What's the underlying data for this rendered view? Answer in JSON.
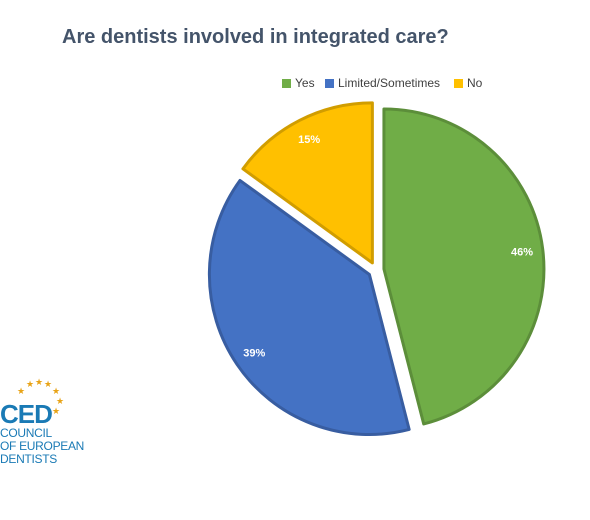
{
  "chart_data": {
    "type": "pie",
    "title": "Are dentists involved in integrated care?",
    "categories": [
      "Yes",
      "Limited/Sometimes",
      "No"
    ],
    "values": [
      46,
      39,
      15
    ],
    "labels": [
      "46%",
      "39%",
      "15%"
    ],
    "colors": [
      "#70ad47",
      "#4472c4",
      "#ffc000"
    ],
    "exploded": true,
    "legend": "top"
  },
  "logo": {
    "abbr": "CED",
    "line1": "COUNCIL",
    "line2": "OF EUROPEAN",
    "line3": "DENTISTS",
    "star_color": "#e8a317"
  }
}
